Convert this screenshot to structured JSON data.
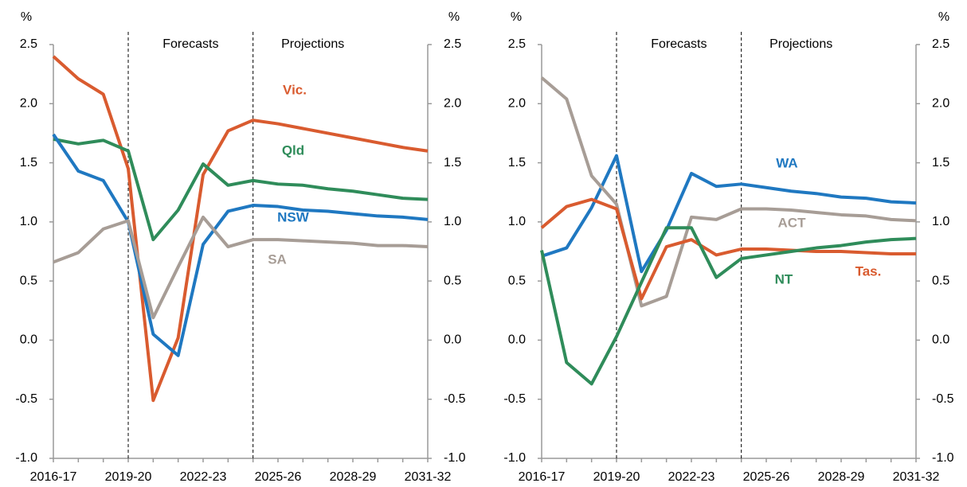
{
  "chart_data": [
    {
      "type": "line",
      "ylabel": "%",
      "y2label": "%",
      "annotations": [
        "Forecasts",
        "Projections"
      ],
      "categories": [
        "2016-17",
        null,
        null,
        "2019-20",
        null,
        null,
        "2022-23",
        null,
        null,
        "2025-26",
        null,
        null,
        "2028-29",
        null,
        null,
        "2031-32"
      ],
      "ylim": [
        -1,
        2.5
      ],
      "yticks": [
        {
          "value": -1,
          "label": "-1.0"
        },
        {
          "value": -0.5,
          "label": "-0.5"
        },
        {
          "value": 0,
          "label": "0.0"
        },
        {
          "value": 0.5,
          "label": "0.5"
        },
        {
          "value": 1,
          "label": "1.0"
        },
        {
          "value": 1.5,
          "label": "1.5"
        },
        {
          "value": 2,
          "label": "2.0"
        },
        {
          "value": 2.5,
          "label": "2.5"
        }
      ],
      "y2lim": [
        -1,
        2.5
      ],
      "y2ticks": [
        {
          "value": -1,
          "label": "-1.0"
        },
        {
          "value": -0.5,
          "label": "-0.5"
        },
        {
          "value": 0,
          "label": "0.0"
        },
        {
          "value": 0.5,
          "label": "0.5"
        },
        {
          "value": 1,
          "label": "1.0"
        },
        {
          "value": 1.5,
          "label": "1.5"
        },
        {
          "value": 2,
          "label": "2.0"
        },
        {
          "value": 2.5,
          "label": "2.5"
        }
      ],
      "series": [
        {
          "name": "Vic.",
          "color": "#d95b2f",
          "values": [
            2.4,
            2.21,
            2.08,
            1.45,
            -0.51,
            0.02,
            1.4,
            1.77,
            1.86,
            1.83,
            1.79,
            1.75,
            1.71,
            1.67,
            1.63,
            1.6
          ]
        },
        {
          "name": "Qld",
          "color": "#2f8c5a",
          "values": [
            1.7,
            1.66,
            1.69,
            1.6,
            0.85,
            1.1,
            1.49,
            1.31,
            1.35,
            1.32,
            1.31,
            1.28,
            1.26,
            1.23,
            1.2,
            1.19
          ]
        },
        {
          "name": "NSW",
          "color": "#1f78c1",
          "values": [
            1.74,
            1.43,
            1.35,
            1.0,
            0.05,
            -0.13,
            0.81,
            1.09,
            1.14,
            1.13,
            1.1,
            1.09,
            1.07,
            1.05,
            1.04,
            1.02
          ]
        },
        {
          "name": "SA",
          "color": "#a79d96",
          "values": [
            0.66,
            0.74,
            0.94,
            1.01,
            0.19,
            0.62,
            1.04,
            0.79,
            0.85,
            0.85,
            0.84,
            0.83,
            0.82,
            0.8,
            0.8,
            0.79
          ]
        }
      ]
    },
    {
      "type": "line",
      "ylabel": "%",
      "y2label": "%",
      "annotations": [
        "Forecasts",
        "Projections"
      ],
      "categories": [
        "2016-17",
        null,
        null,
        "2019-20",
        null,
        null,
        "2022-23",
        null,
        null,
        "2025-26",
        null,
        null,
        "2028-29",
        null,
        null,
        "2031-32"
      ],
      "ylim": [
        -1,
        2.5
      ],
      "yticks": [
        {
          "value": -1,
          "label": "-1.0"
        },
        {
          "value": -0.5,
          "label": "-0.5"
        },
        {
          "value": 0,
          "label": "0.0"
        },
        {
          "value": 0.5,
          "label": "0.5"
        },
        {
          "value": 1,
          "label": "1.0"
        },
        {
          "value": 1.5,
          "label": "1.5"
        },
        {
          "value": 2,
          "label": "2.0"
        },
        {
          "value": 2.5,
          "label": "2.5"
        }
      ],
      "y2lim": [
        -1,
        2.5
      ],
      "y2ticks": [
        {
          "value": -1,
          "label": "-1.0"
        },
        {
          "value": -0.5,
          "label": "-0.5"
        },
        {
          "value": 0,
          "label": "0.0"
        },
        {
          "value": 0.5,
          "label": "0.5"
        },
        {
          "value": 1,
          "label": "1.0"
        },
        {
          "value": 1.5,
          "label": "1.5"
        },
        {
          "value": 2,
          "label": "2.0"
        },
        {
          "value": 2.5,
          "label": "2.5"
        }
      ],
      "series": [
        {
          "name": "WA",
          "color": "#1f78c1",
          "values": [
            0.71,
            0.78,
            1.12,
            1.56,
            0.58,
            0.93,
            1.41,
            1.3,
            1.32,
            1.29,
            1.26,
            1.24,
            1.21,
            1.2,
            1.17,
            1.16
          ]
        },
        {
          "name": "ACT",
          "color": "#a79d96",
          "values": [
            2.22,
            2.04,
            1.39,
            1.15,
            0.29,
            0.37,
            1.04,
            1.02,
            1.11,
            1.11,
            1.1,
            1.08,
            1.06,
            1.05,
            1.02,
            1.01
          ]
        },
        {
          "name": "Tas.",
          "color": "#d95b2f",
          "values": [
            0.95,
            1.13,
            1.19,
            1.11,
            0.35,
            0.79,
            0.85,
            0.72,
            0.77,
            0.77,
            0.76,
            0.75,
            0.75,
            0.74,
            0.73,
            0.73
          ]
        },
        {
          "name": "NT",
          "color": "#2f8c5a",
          "values": [
            0.76,
            -0.19,
            -0.37,
            0.03,
            0.49,
            0.95,
            0.95,
            0.53,
            0.69,
            0.72,
            0.75,
            0.78,
            0.8,
            0.83,
            0.85,
            0.86
          ]
        }
      ]
    }
  ]
}
